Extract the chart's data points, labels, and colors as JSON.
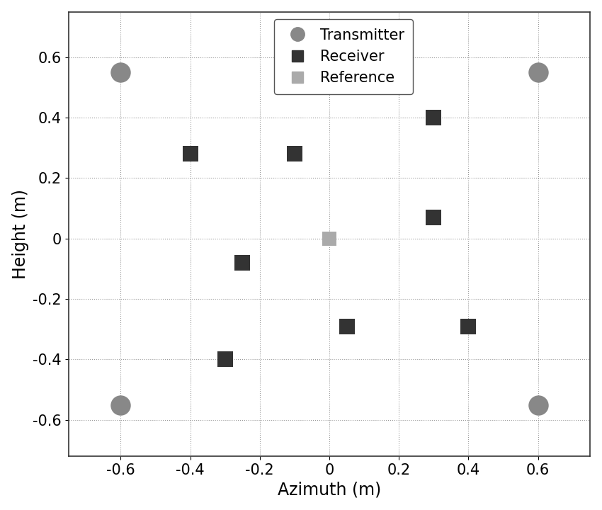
{
  "transmitters": [
    [
      -0.6,
      0.55
    ],
    [
      0.6,
      0.55
    ],
    [
      -0.6,
      -0.55
    ],
    [
      0.6,
      -0.55
    ]
  ],
  "receivers": [
    [
      -0.4,
      0.28
    ],
    [
      -0.1,
      0.28
    ],
    [
      0.3,
      0.4
    ],
    [
      -0.25,
      -0.08
    ],
    [
      0.3,
      0.07
    ],
    [
      0.05,
      -0.29
    ],
    [
      0.4,
      -0.29
    ],
    [
      -0.3,
      -0.4
    ]
  ],
  "reference": [
    [
      0.0,
      0.0
    ]
  ],
  "xlabel": "Azimuth (m)",
  "ylabel": "Height (m)",
  "xlim": [
    -0.75,
    0.75
  ],
  "ylim": [
    -0.72,
    0.75
  ],
  "xticks": [
    -0.6,
    -0.4,
    -0.2,
    0.0,
    0.2,
    0.4,
    0.6
  ],
  "yticks": [
    -0.6,
    -0.4,
    -0.2,
    0.0,
    0.2,
    0.4,
    0.6
  ],
  "transmitter_color": "#888888",
  "receiver_color": "#333333",
  "reference_color": "#aaaaaa",
  "transmitter_size": 420,
  "receiver_size": 230,
  "reference_size": 200,
  "background_color": "#ffffff",
  "grid_color": "#999999",
  "legend_labels": [
    "Transmitter",
    "Receiver",
    "Reference"
  ],
  "xlabel_fontsize": 17,
  "ylabel_fontsize": 17,
  "tick_fontsize": 15,
  "legend_fontsize": 15
}
